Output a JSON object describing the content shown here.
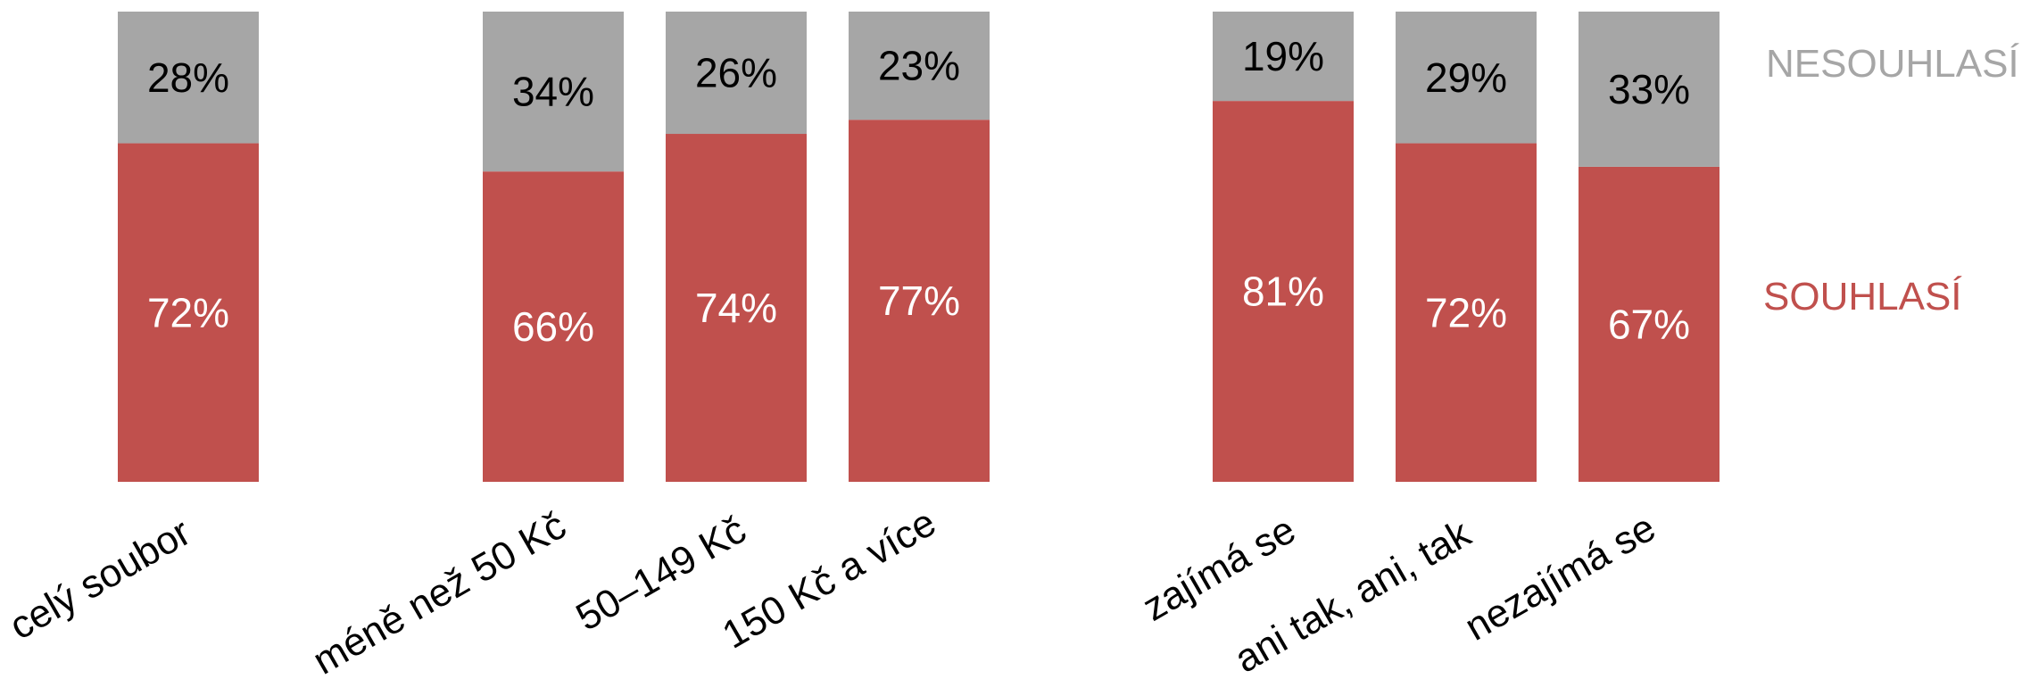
{
  "chart_data": {
    "type": "bar",
    "stacked": true,
    "normalized": true,
    "categories": [
      "celý soubor",
      "méně než 50 Kč",
      "50–149 Kč",
      "150 Kč a více",
      "zajímá se",
      "ani tak, ani, tak",
      "nezajímá se"
    ],
    "groups": [
      [
        0
      ],
      [
        1,
        2,
        3
      ],
      [
        4,
        5,
        6
      ]
    ],
    "series": [
      {
        "name": "SOUHLASÍ",
        "values": [
          72,
          66,
          74,
          77,
          81,
          72,
          67
        ],
        "labels": [
          "72%",
          "66%",
          "74%",
          "77%",
          "81%",
          "72%",
          "67%"
        ],
        "color": "#c0504d",
        "label_color": "#ffffff"
      },
      {
        "name": "NESOUHLASÍ",
        "values": [
          28,
          34,
          26,
          23,
          19,
          29,
          33
        ],
        "labels": [
          "28%",
          "34%",
          "26%",
          "23%",
          "19%",
          "29%",
          "33%"
        ],
        "color": "#a6a6a6",
        "label_color": "#000000"
      }
    ],
    "ylim": [
      0,
      100
    ],
    "grid": false,
    "legend_position": "right"
  }
}
